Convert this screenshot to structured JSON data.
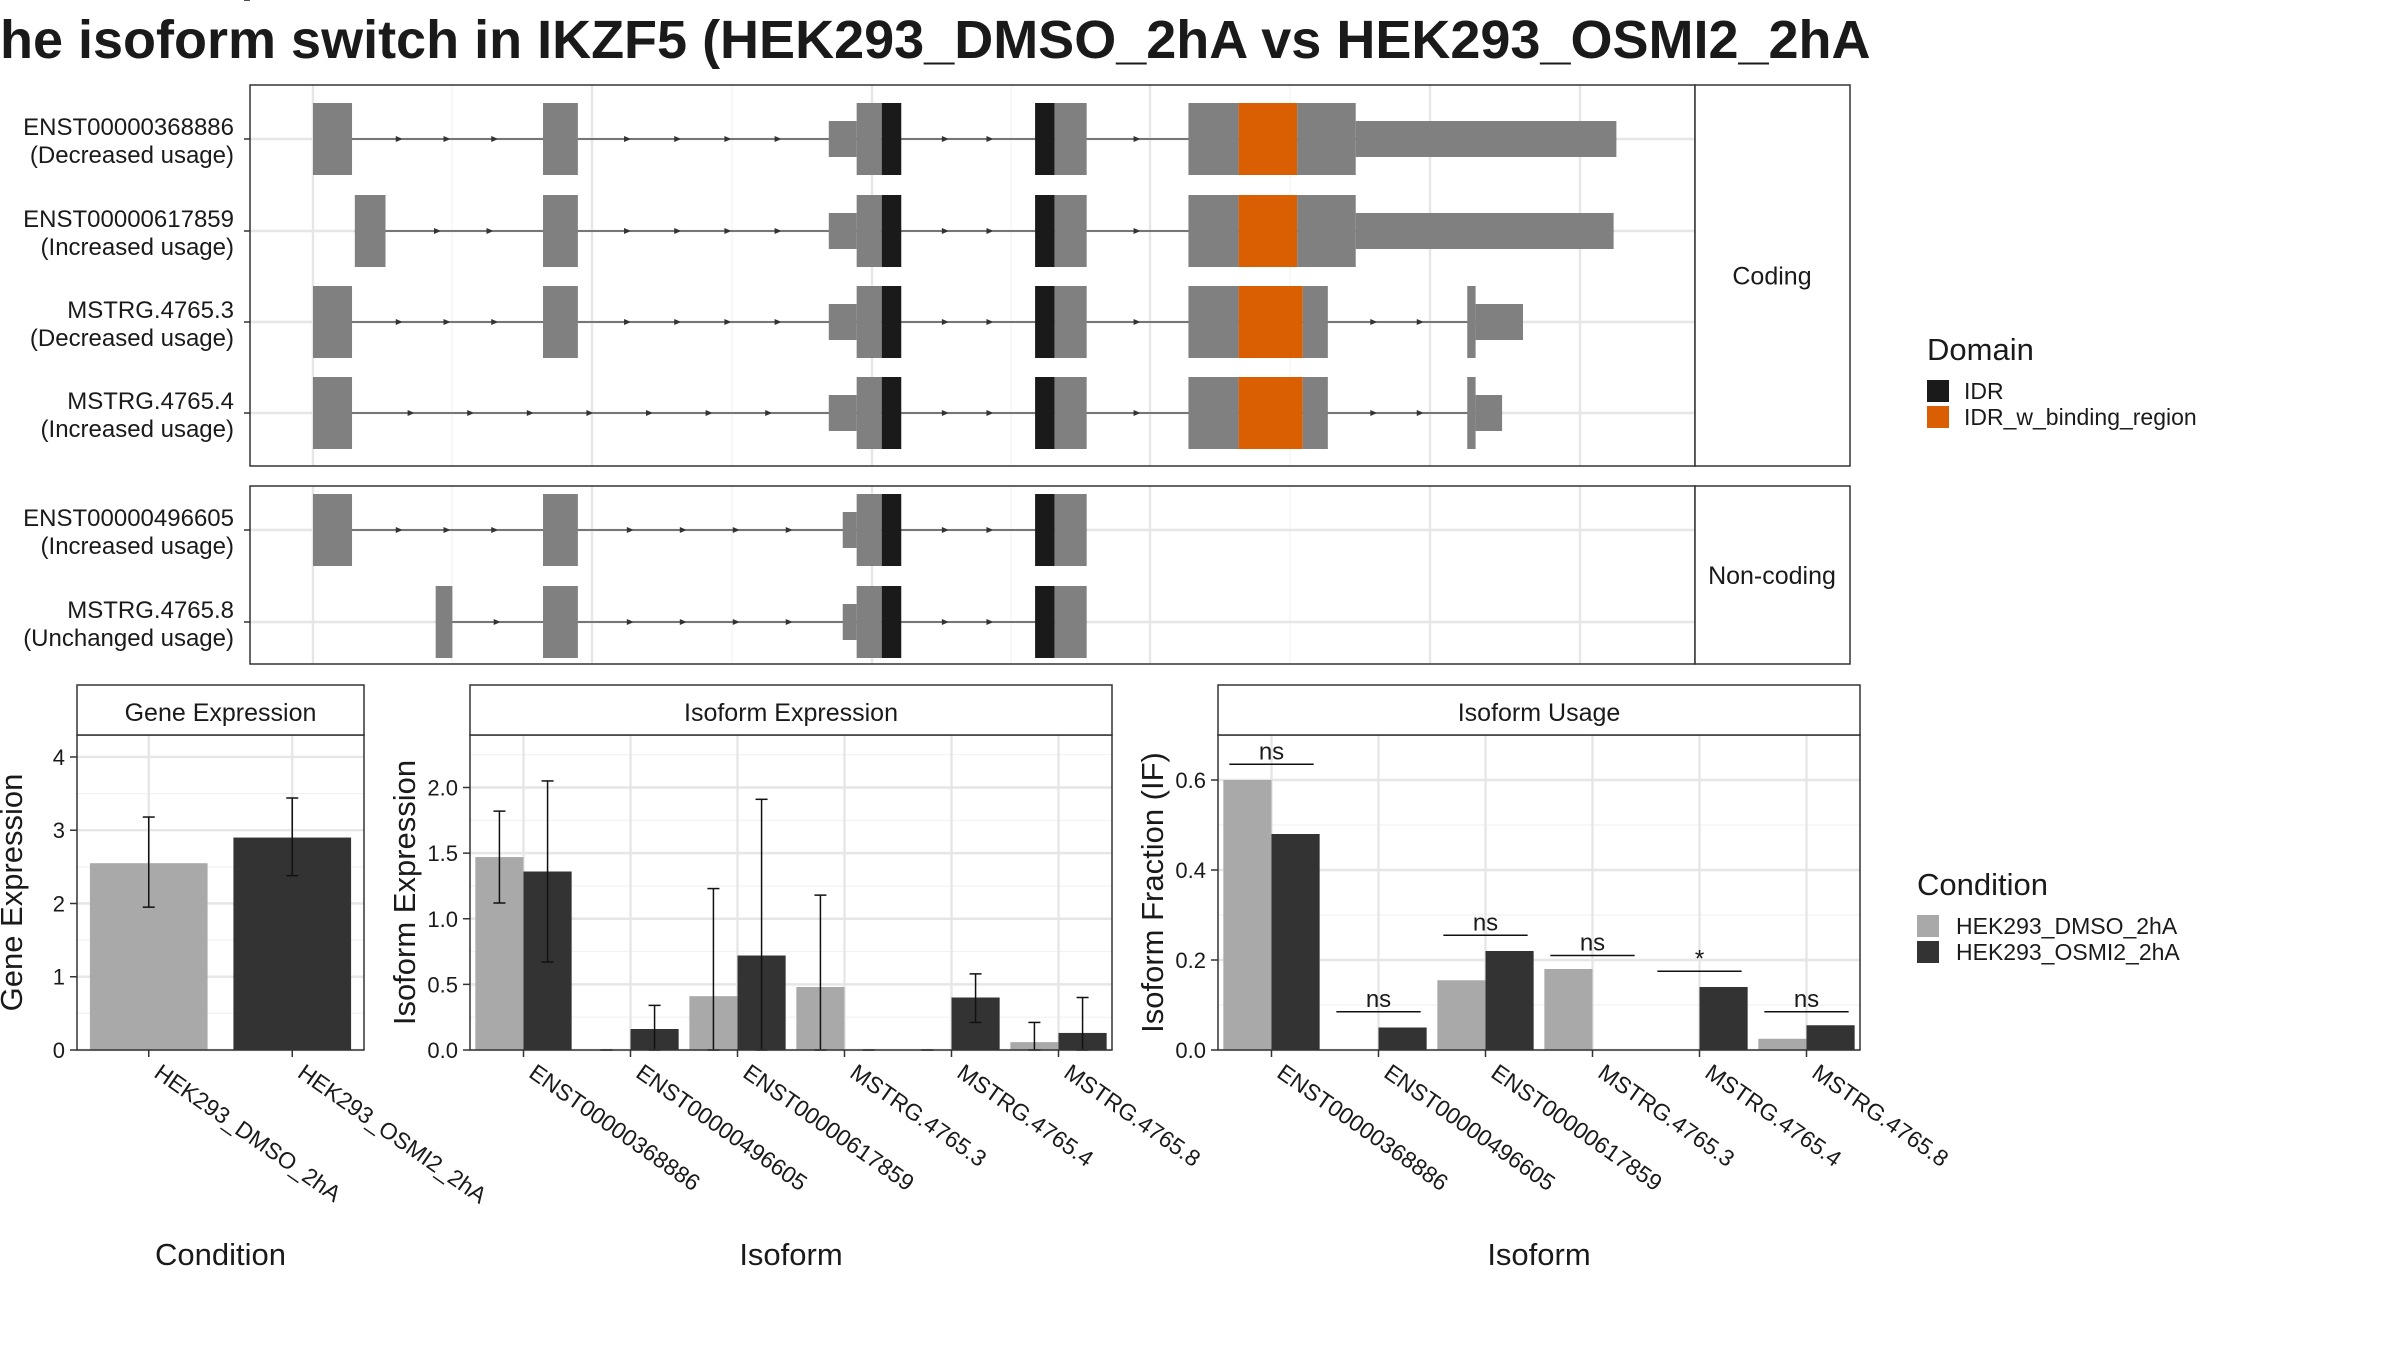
{
  "title": "he isoform switch in IKZF5 (HEK293_DMSO_2hA vs HEK293_OSMI2_2hA",
  "colors": {
    "exon": "#808080",
    "IDR": "#1a1a1a",
    "IDR_w_binding_region": "#d95f02",
    "HEK293_DMSO_2hA": "#a9a9a9",
    "HEK293_OSMI2_2hA": "#333333"
  },
  "structure": {
    "domain_legend": {
      "title": "Domain",
      "items": [
        {
          "label": "IDR",
          "color_key": "IDR"
        },
        {
          "label": "IDR_w_binding_region",
          "color_key": "IDR_w_binding_region"
        }
      ]
    },
    "groups": [
      {
        "label": "Coding",
        "transcripts": [
          {
            "id": "ENST00000368886",
            "usage": "(Decreased usage)",
            "segments": [
              {
                "s": 0.0,
                "e": 2.8,
                "h": "full",
                "c": "exon"
              },
              {
                "s": 16.5,
                "e": 19.0,
                "h": "full",
                "c": "exon"
              },
              {
                "s": 37.0,
                "e": 39.0,
                "h": "half",
                "c": "exon"
              },
              {
                "s": 39.0,
                "e": 40.8,
                "h": "full",
                "c": "exon"
              },
              {
                "s": 40.8,
                "e": 42.2,
                "h": "full",
                "c": "IDR"
              },
              {
                "s": 51.8,
                "e": 53.2,
                "h": "full",
                "c": "IDR"
              },
              {
                "s": 53.2,
                "e": 55.5,
                "h": "full",
                "c": "exon"
              },
              {
                "s": 62.8,
                "e": 66.4,
                "h": "full",
                "c": "exon"
              },
              {
                "s": 66.4,
                "e": 70.6,
                "h": "full",
                "c": "IDR_w_binding_region"
              },
              {
                "s": 70.6,
                "e": 74.8,
                "h": "full",
                "c": "exon"
              },
              {
                "s": 74.8,
                "e": 93.5,
                "h": "half",
                "c": "exon"
              }
            ]
          },
          {
            "id": "ENST00000617859",
            "usage": "(Increased usage)",
            "segments": [
              {
                "s": 3.0,
                "e": 5.2,
                "h": "full",
                "c": "exon"
              },
              {
                "s": 16.5,
                "e": 19.0,
                "h": "full",
                "c": "exon"
              },
              {
                "s": 37.0,
                "e": 39.0,
                "h": "half",
                "c": "exon"
              },
              {
                "s": 39.0,
                "e": 40.8,
                "h": "full",
                "c": "exon"
              },
              {
                "s": 40.8,
                "e": 42.2,
                "h": "full",
                "c": "IDR"
              },
              {
                "s": 51.8,
                "e": 53.2,
                "h": "full",
                "c": "IDR"
              },
              {
                "s": 53.2,
                "e": 55.5,
                "h": "full",
                "c": "exon"
              },
              {
                "s": 62.8,
                "e": 66.4,
                "h": "full",
                "c": "exon"
              },
              {
                "s": 66.4,
                "e": 70.6,
                "h": "full",
                "c": "IDR_w_binding_region"
              },
              {
                "s": 70.6,
                "e": 74.8,
                "h": "full",
                "c": "exon"
              },
              {
                "s": 74.8,
                "e": 93.3,
                "h": "half",
                "c": "exon"
              }
            ]
          },
          {
            "id": "MSTRG.4765.3",
            "usage": "(Decreased usage)",
            "segments": [
              {
                "s": 0.0,
                "e": 2.8,
                "h": "full",
                "c": "exon"
              },
              {
                "s": 16.5,
                "e": 19.0,
                "h": "full",
                "c": "exon"
              },
              {
                "s": 37.0,
                "e": 39.0,
                "h": "half",
                "c": "exon"
              },
              {
                "s": 39.0,
                "e": 40.8,
                "h": "full",
                "c": "exon"
              },
              {
                "s": 40.8,
                "e": 42.2,
                "h": "full",
                "c": "IDR"
              },
              {
                "s": 51.8,
                "e": 53.2,
                "h": "full",
                "c": "IDR"
              },
              {
                "s": 53.2,
                "e": 55.5,
                "h": "full",
                "c": "exon"
              },
              {
                "s": 62.8,
                "e": 66.4,
                "h": "full",
                "c": "exon"
              },
              {
                "s": 66.4,
                "e": 71.0,
                "h": "full",
                "c": "IDR_w_binding_region"
              },
              {
                "s": 71.0,
                "e": 72.8,
                "h": "full",
                "c": "exon"
              },
              {
                "s": 82.8,
                "e": 83.4,
                "h": "full",
                "c": "exon"
              },
              {
                "s": 83.4,
                "e": 86.8,
                "h": "half",
                "c": "exon"
              }
            ]
          },
          {
            "id": "MSTRG.4765.4",
            "usage": "(Increased usage)",
            "segments": [
              {
                "s": 0.0,
                "e": 2.8,
                "h": "full",
                "c": "exon"
              },
              {
                "s": 37.0,
                "e": 39.0,
                "h": "half",
                "c": "exon"
              },
              {
                "s": 39.0,
                "e": 40.8,
                "h": "full",
                "c": "exon"
              },
              {
                "s": 40.8,
                "e": 42.2,
                "h": "full",
                "c": "IDR"
              },
              {
                "s": 51.8,
                "e": 53.2,
                "h": "full",
                "c": "IDR"
              },
              {
                "s": 53.2,
                "e": 55.5,
                "h": "full",
                "c": "exon"
              },
              {
                "s": 62.8,
                "e": 66.4,
                "h": "full",
                "c": "exon"
              },
              {
                "s": 66.4,
                "e": 71.0,
                "h": "full",
                "c": "IDR_w_binding_region"
              },
              {
                "s": 71.0,
                "e": 72.8,
                "h": "full",
                "c": "exon"
              },
              {
                "s": 82.8,
                "e": 83.4,
                "h": "full",
                "c": "exon"
              },
              {
                "s": 83.4,
                "e": 85.3,
                "h": "half",
                "c": "exon"
              }
            ]
          }
        ]
      },
      {
        "label": "Non-coding",
        "transcripts": [
          {
            "id": "ENST00000496605",
            "usage": "(Increased usage)",
            "segments": [
              {
                "s": 0.0,
                "e": 2.8,
                "h": "full",
                "c": "exon"
              },
              {
                "s": 16.5,
                "e": 19.0,
                "h": "full",
                "c": "exon"
              },
              {
                "s": 38.0,
                "e": 39.0,
                "h": "half",
                "c": "exon"
              },
              {
                "s": 39.0,
                "e": 40.8,
                "h": "full",
                "c": "exon"
              },
              {
                "s": 40.8,
                "e": 42.2,
                "h": "full",
                "c": "IDR"
              },
              {
                "s": 51.8,
                "e": 53.2,
                "h": "full",
                "c": "IDR"
              },
              {
                "s": 53.2,
                "e": 55.5,
                "h": "full",
                "c": "exon"
              }
            ]
          },
          {
            "id": "MSTRG.4765.8",
            "usage": "(Unchanged usage)",
            "segments": [
              {
                "s": 8.8,
                "e": 10.0,
                "h": "full",
                "c": "exon"
              },
              {
                "s": 16.5,
                "e": 19.0,
                "h": "full",
                "c": "exon"
              },
              {
                "s": 38.0,
                "e": 39.0,
                "h": "half",
                "c": "exon"
              },
              {
                "s": 39.0,
                "e": 40.8,
                "h": "full",
                "c": "exon"
              },
              {
                "s": 40.8,
                "e": 42.2,
                "h": "full",
                "c": "IDR"
              },
              {
                "s": 51.8,
                "e": 53.2,
                "h": "full",
                "c": "IDR"
              },
              {
                "s": 53.2,
                "e": 55.5,
                "h": "full",
                "c": "exon"
              }
            ]
          }
        ]
      }
    ]
  },
  "condition_legend": {
    "title": "Condition",
    "items": [
      {
        "label": "HEK293_DMSO_2hA",
        "color_key": "HEK293_DMSO_2hA"
      },
      {
        "label": "HEK293_OSMI2_2hA",
        "color_key": "HEK293_OSMI2_2hA"
      }
    ]
  },
  "chart_data": [
    {
      "type": "bar",
      "title": "Gene Expression",
      "xlabel": "Condition",
      "ylabel": "Gene Expression",
      "ylim": [
        0,
        4.3
      ],
      "yticks": [
        0,
        1,
        2,
        3,
        4
      ],
      "tick_labels": [
        "0",
        "1",
        "2",
        "3",
        "4"
      ],
      "categories": [
        "HEK293_DMSO_2hA",
        "HEK293_OSMI2_2hA"
      ],
      "values": [
        2.55,
        2.9
      ],
      "err_low": [
        1.95,
        2.38
      ],
      "err_high": [
        3.18,
        3.44
      ]
    },
    {
      "type": "bar",
      "title": "Isoform Expression",
      "xlabel": "Isoform",
      "ylabel": "Isoform Expression",
      "ylim": [
        0,
        2.4
      ],
      "yticks": [
        0,
        0.5,
        1,
        1.5,
        2
      ],
      "tick_labels": [
        "0.0",
        "0.5",
        "1.0",
        "1.5",
        "2.0"
      ],
      "categories": [
        "ENST00000368886",
        "ENST00000496605",
        "ENST00000617859",
        "MSTRG.4765.3",
        "MSTRG.4765.4",
        "MSTRG.4765.8"
      ],
      "series": [
        {
          "name": "HEK293_DMSO_2hA",
          "values": [
            1.47,
            0.0,
            0.41,
            0.48,
            0.0,
            0.06
          ],
          "err_low": [
            1.12,
            0.0,
            0.0,
            0.0,
            0.0,
            0.0
          ],
          "err_high": [
            1.82,
            0.0,
            1.23,
            1.18,
            0.0,
            0.21
          ]
        },
        {
          "name": "HEK293_OSMI2_2hA",
          "values": [
            1.36,
            0.16,
            0.72,
            0.0,
            0.4,
            0.13
          ],
          "err_low": [
            0.67,
            0.0,
            0.0,
            0.0,
            0.21,
            0.0
          ],
          "err_high": [
            2.05,
            0.34,
            1.91,
            0.0,
            0.58,
            0.4
          ]
        }
      ]
    },
    {
      "type": "bar",
      "title": "Isoform Usage",
      "xlabel": "Isoform",
      "ylabel": "Isoform Fraction (IF)",
      "ylim": [
        0,
        0.7
      ],
      "yticks": [
        0,
        0.2,
        0.4,
        0.6
      ],
      "tick_labels": [
        "0.0",
        "0.2",
        "0.4",
        "0.6"
      ],
      "categories": [
        "ENST00000368886",
        "ENST00000496605",
        "ENST00000617859",
        "MSTRG.4765.3",
        "MSTRG.4765.4",
        "MSTRG.4765.8"
      ],
      "series": [
        {
          "name": "HEK293_DMSO_2hA",
          "values": [
            0.6,
            0.0,
            0.155,
            0.18,
            0.0,
            0.025
          ]
        },
        {
          "name": "HEK293_OSMI2_2hA",
          "values": [
            0.48,
            0.05,
            0.22,
            0.0,
            0.14,
            0.055
          ]
        }
      ],
      "significance": [
        "ns",
        "ns",
        "ns",
        "ns",
        "*",
        "ns"
      ],
      "sig_levels": [
        0.635,
        0.085,
        0.255,
        0.21,
        0.175,
        0.085
      ]
    }
  ]
}
